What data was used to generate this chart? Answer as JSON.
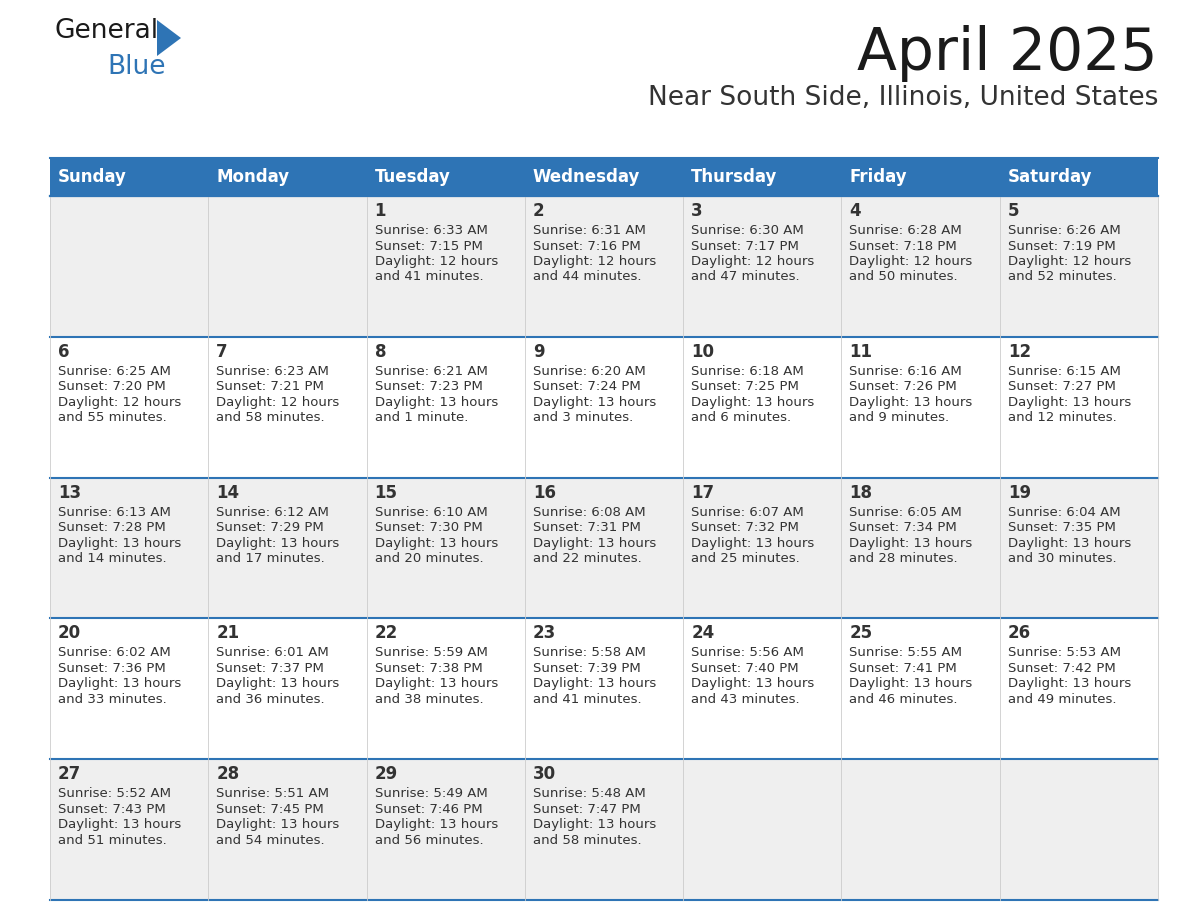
{
  "title": "April 2025",
  "subtitle": "Near South Side, Illinois, United States",
  "header_bg": "#2E74B5",
  "header_text_color": "#FFFFFF",
  "cell_bg_odd": "#EFEFEF",
  "cell_bg_even": "#FFFFFF",
  "text_color": "#333333",
  "line_color": "#2E74B5",
  "days_of_week": [
    "Sunday",
    "Monday",
    "Tuesday",
    "Wednesday",
    "Thursday",
    "Friday",
    "Saturday"
  ],
  "weeks": [
    [
      {
        "day": null,
        "sunrise": null,
        "sunset": null,
        "daylight": null
      },
      {
        "day": null,
        "sunrise": null,
        "sunset": null,
        "daylight": null
      },
      {
        "day": 1,
        "sunrise": "6:33 AM",
        "sunset": "7:15 PM",
        "daylight": "12 hours and 41 minutes."
      },
      {
        "day": 2,
        "sunrise": "6:31 AM",
        "sunset": "7:16 PM",
        "daylight": "12 hours and 44 minutes."
      },
      {
        "day": 3,
        "sunrise": "6:30 AM",
        "sunset": "7:17 PM",
        "daylight": "12 hours and 47 minutes."
      },
      {
        "day": 4,
        "sunrise": "6:28 AM",
        "sunset": "7:18 PM",
        "daylight": "12 hours and 50 minutes."
      },
      {
        "day": 5,
        "sunrise": "6:26 AM",
        "sunset": "7:19 PM",
        "daylight": "12 hours and 52 minutes."
      }
    ],
    [
      {
        "day": 6,
        "sunrise": "6:25 AM",
        "sunset": "7:20 PM",
        "daylight": "12 hours and 55 minutes."
      },
      {
        "day": 7,
        "sunrise": "6:23 AM",
        "sunset": "7:21 PM",
        "daylight": "12 hours and 58 minutes."
      },
      {
        "day": 8,
        "sunrise": "6:21 AM",
        "sunset": "7:23 PM",
        "daylight": "13 hours and 1 minute."
      },
      {
        "day": 9,
        "sunrise": "6:20 AM",
        "sunset": "7:24 PM",
        "daylight": "13 hours and 3 minutes."
      },
      {
        "day": 10,
        "sunrise": "6:18 AM",
        "sunset": "7:25 PM",
        "daylight": "13 hours and 6 minutes."
      },
      {
        "day": 11,
        "sunrise": "6:16 AM",
        "sunset": "7:26 PM",
        "daylight": "13 hours and 9 minutes."
      },
      {
        "day": 12,
        "sunrise": "6:15 AM",
        "sunset": "7:27 PM",
        "daylight": "13 hours and 12 minutes."
      }
    ],
    [
      {
        "day": 13,
        "sunrise": "6:13 AM",
        "sunset": "7:28 PM",
        "daylight": "13 hours and 14 minutes."
      },
      {
        "day": 14,
        "sunrise": "6:12 AM",
        "sunset": "7:29 PM",
        "daylight": "13 hours and 17 minutes."
      },
      {
        "day": 15,
        "sunrise": "6:10 AM",
        "sunset": "7:30 PM",
        "daylight": "13 hours and 20 minutes."
      },
      {
        "day": 16,
        "sunrise": "6:08 AM",
        "sunset": "7:31 PM",
        "daylight": "13 hours and 22 minutes."
      },
      {
        "day": 17,
        "sunrise": "6:07 AM",
        "sunset": "7:32 PM",
        "daylight": "13 hours and 25 minutes."
      },
      {
        "day": 18,
        "sunrise": "6:05 AM",
        "sunset": "7:34 PM",
        "daylight": "13 hours and 28 minutes."
      },
      {
        "day": 19,
        "sunrise": "6:04 AM",
        "sunset": "7:35 PM",
        "daylight": "13 hours and 30 minutes."
      }
    ],
    [
      {
        "day": 20,
        "sunrise": "6:02 AM",
        "sunset": "7:36 PM",
        "daylight": "13 hours and 33 minutes."
      },
      {
        "day": 21,
        "sunrise": "6:01 AM",
        "sunset": "7:37 PM",
        "daylight": "13 hours and 36 minutes."
      },
      {
        "day": 22,
        "sunrise": "5:59 AM",
        "sunset": "7:38 PM",
        "daylight": "13 hours and 38 minutes."
      },
      {
        "day": 23,
        "sunrise": "5:58 AM",
        "sunset": "7:39 PM",
        "daylight": "13 hours and 41 minutes."
      },
      {
        "day": 24,
        "sunrise": "5:56 AM",
        "sunset": "7:40 PM",
        "daylight": "13 hours and 43 minutes."
      },
      {
        "day": 25,
        "sunrise": "5:55 AM",
        "sunset": "7:41 PM",
        "daylight": "13 hours and 46 minutes."
      },
      {
        "day": 26,
        "sunrise": "5:53 AM",
        "sunset": "7:42 PM",
        "daylight": "13 hours and 49 minutes."
      }
    ],
    [
      {
        "day": 27,
        "sunrise": "5:52 AM",
        "sunset": "7:43 PM",
        "daylight": "13 hours and 51 minutes."
      },
      {
        "day": 28,
        "sunrise": "5:51 AM",
        "sunset": "7:45 PM",
        "daylight": "13 hours and 54 minutes."
      },
      {
        "day": 29,
        "sunrise": "5:49 AM",
        "sunset": "7:46 PM",
        "daylight": "13 hours and 56 minutes."
      },
      {
        "day": 30,
        "sunrise": "5:48 AM",
        "sunset": "7:47 PM",
        "daylight": "13 hours and 58 minutes."
      },
      {
        "day": null,
        "sunrise": null,
        "sunset": null,
        "daylight": null
      },
      {
        "day": null,
        "sunrise": null,
        "sunset": null,
        "daylight": null
      },
      {
        "day": null,
        "sunrise": null,
        "sunset": null,
        "daylight": null
      }
    ]
  ],
  "logo_general_color": "#1A1A1A",
  "logo_blue_color": "#2E74B5",
  "logo_triangle_color": "#2E74B5"
}
